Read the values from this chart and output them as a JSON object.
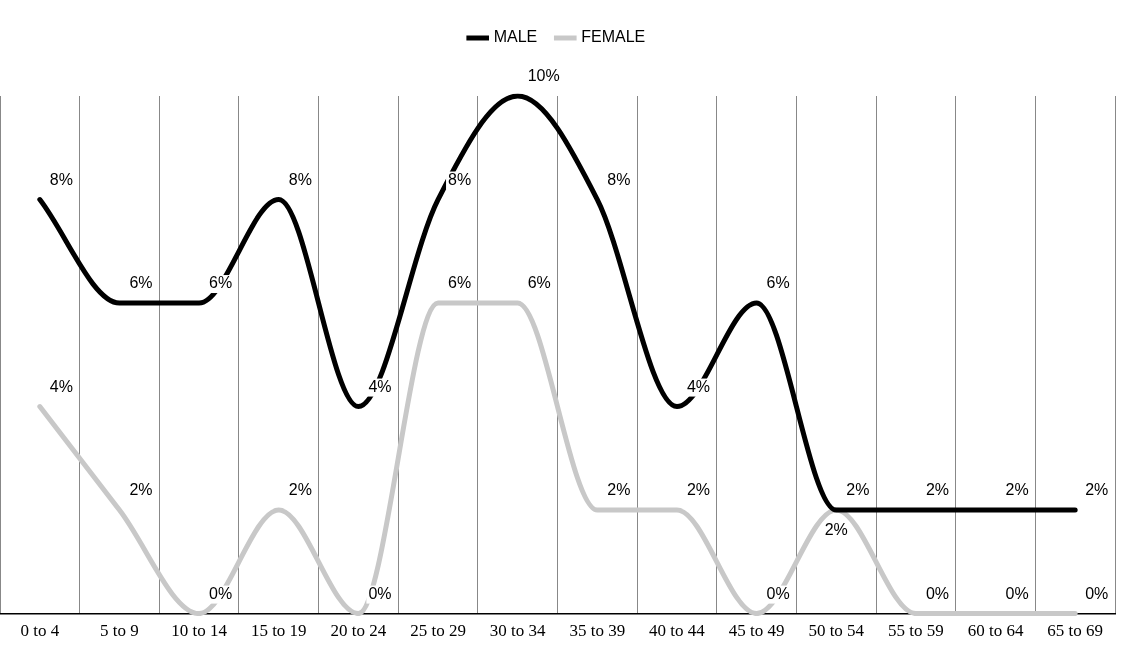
{
  "chart_data": {
    "type": "line",
    "categories": [
      "0 to 4",
      "5 to 9",
      "10 to 14",
      "15 to 19",
      "20 to 24",
      "25 to 29",
      "30 to 34",
      "35 to 39",
      "40 to 44",
      "45 to 49",
      "50 to 54",
      "55 to 59",
      "60 to 64",
      "65 to 69"
    ],
    "series": [
      {
        "name": "MALE",
        "color": "#000000",
        "values": [
          8,
          6,
          6,
          8,
          4,
          8,
          10,
          8,
          4,
          6,
          2,
          2,
          2,
          2
        ],
        "value_labels": [
          "8%",
          "6%",
          "6%",
          "8%",
          "4%",
          "8%",
          "10%",
          "8%",
          "4%",
          "6%",
          "2%",
          "2%",
          "2%",
          "2%"
        ]
      },
      {
        "name": "FEMALE",
        "color": "#c8c8c8",
        "values": [
          4,
          2,
          0,
          2,
          0,
          6,
          6,
          2,
          2,
          0,
          2,
          0,
          0,
          0
        ],
        "value_labels": [
          "4%",
          "2%",
          "0%",
          "2%",
          "0%",
          "6%",
          "6%",
          "2%",
          "2%",
          "0%",
          "2%",
          "0%",
          "0%",
          "0%"
        ]
      }
    ],
    "grid": "x",
    "legend": "top",
    "marker": "none",
    "line_style": "solid"
  }
}
